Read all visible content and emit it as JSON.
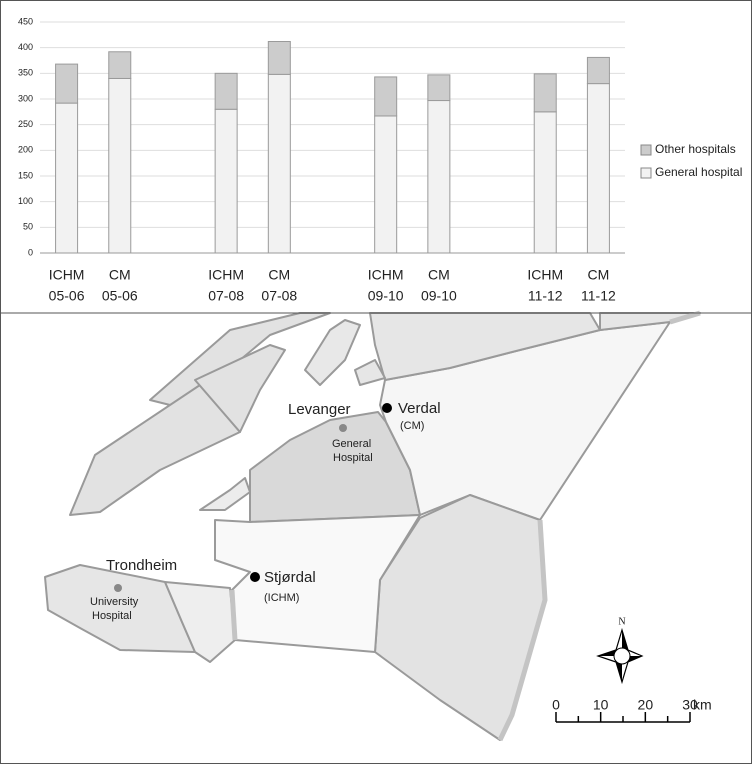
{
  "chart_data": {
    "type": "bar",
    "stacked": true,
    "grid": true,
    "categories": [
      [
        "ICHM",
        "05-06"
      ],
      [
        "CM",
        "05-06"
      ],
      null,
      [
        "ICHM",
        "07-08"
      ],
      [
        "CM",
        "07-08"
      ],
      null,
      [
        "ICHM",
        "09-10"
      ],
      [
        "CM",
        "09-10"
      ],
      null,
      [
        "ICHM",
        "11-12"
      ],
      [
        "CM",
        "11-12"
      ]
    ],
    "series": [
      {
        "name": "General hospital",
        "color": "#f2f2f2",
        "values": [
          292,
          340,
          null,
          280,
          348,
          null,
          267,
          297,
          null,
          275,
          330
        ]
      },
      {
        "name": "Other hospitals",
        "color": "#cccccc",
        "values": [
          76,
          52,
          null,
          70,
          64,
          null,
          76,
          50,
          null,
          74,
          51
        ]
      }
    ],
    "ylim": [
      0,
      450
    ],
    "yticks": [
      0,
      50,
      100,
      150,
      200,
      250,
      300,
      350,
      400,
      450
    ]
  },
  "map": {
    "places": [
      {
        "name": "Levanger",
        "note": [
          "General",
          "Hospital"
        ]
      },
      {
        "name": "Verdal",
        "note": [
          "(CM)"
        ]
      },
      {
        "name": "Stjørdal",
        "note": [
          "(ICHM)"
        ]
      },
      {
        "name": "Trondheim",
        "note": [
          "University",
          "Hospital"
        ]
      }
    ],
    "compass": "N",
    "scale_labels": [
      "0",
      "10",
      "20",
      "30"
    ],
    "scale_unit": "km"
  }
}
